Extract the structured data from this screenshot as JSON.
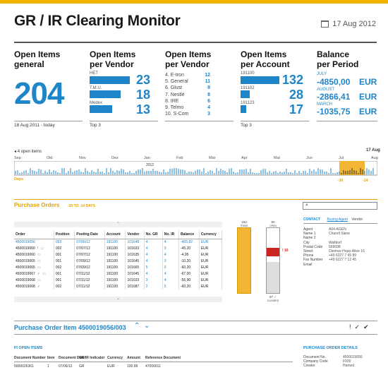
{
  "app": {
    "title": "GR / IR Clearing Monitor",
    "date": "17 Aug 2012"
  },
  "kpis": {
    "general": {
      "title": "Open Items",
      "sub": "general",
      "value": "204",
      "footer": "18 Aug 2011 - today"
    },
    "per_vendor_top": {
      "title": "Open Items",
      "sub": "per Vendor",
      "footer": "Top 3",
      "items": [
        {
          "label": "HET",
          "value": "23",
          "fill": 1.0
        },
        {
          "label": "T.M.U.",
          "value": "18",
          "fill": 0.78
        },
        {
          "label": "Medex",
          "value": "13",
          "fill": 0.57
        }
      ]
    },
    "per_vendor_rank": {
      "title": "Open Items",
      "sub": "per Vendor",
      "items": [
        {
          "label": "4. E-tron",
          "value": "12"
        },
        {
          "label": "5. General",
          "value": "11"
        },
        {
          "label": "6. Glust",
          "value": "9"
        },
        {
          "label": "7. Nestlé",
          "value": "8"
        },
        {
          "label": "8. IRE",
          "value": "6"
        },
        {
          "label": "9. Telmo",
          "value": "4"
        },
        {
          "label": "10. S-Com",
          "value": "3"
        }
      ]
    },
    "per_account": {
      "title": "Open Items",
      "sub": "per Account",
      "footer": "Top 3",
      "items": [
        {
          "label": "191100",
          "value": "132",
          "fill": 1.0
        },
        {
          "label": "191102",
          "value": "28",
          "fill": 0.21
        },
        {
          "label": "191123",
          "value": "17",
          "fill": 0.13
        }
      ]
    },
    "balance": {
      "title": "Balance",
      "sub": "per Period",
      "items": [
        {
          "month": "JULY",
          "value": "-4850,00",
          "cur": "EUR"
        },
        {
          "month": "AUGUST",
          "value": "-2866,41",
          "cur": "EUR"
        },
        {
          "month": "MARCH",
          "value": "-1035,75",
          "cur": "EUR"
        }
      ]
    }
  },
  "timeline": {
    "left_label": "4 open items",
    "right_label": "17 Aug",
    "months": [
      "Sep",
      "Okt",
      "Nov",
      "Dez",
      "Jan",
      "Feb",
      "Mär",
      "Apr",
      "Mai",
      "Jun",
      "Jul",
      "Aug"
    ],
    "year_label": "2012",
    "days_label": "Days",
    "marker_a": "-30",
    "marker_b": "-14"
  },
  "purchase_orders": {
    "title": "Purchase Orders",
    "subtitle": "-30 TO -14 DAYS",
    "columns": [
      "Order",
      "Position",
      "Posting Date",
      "Account",
      "Vendor",
      "No. GR",
      "No. IR",
      "Balance",
      "Currency"
    ],
    "rows": [
      [
        "4500019056",
        "003",
        "07/06/12",
        "191100",
        "101648",
        "4",
        "4",
        "-465,82",
        "EUR"
      ],
      [
        "4500019060",
        "002",
        "07/07/12",
        "191100",
        "101633",
        "4",
        "9",
        "-45,20",
        "EUR"
      ],
      [
        "4500019060",
        "001",
        "07/07/12",
        "191100",
        "101635",
        "4",
        "4",
        "-4,95",
        "EUR"
      ],
      [
        "4500019065",
        "001",
        "07/09/12",
        "191100",
        "101645",
        "4",
        "3",
        "-10,20",
        "EUR"
      ],
      [
        "4500019065",
        "002",
        "07/09/12",
        "191100",
        "101665",
        "5",
        "0",
        "-60,20",
        "EUR"
      ],
      [
        "4500019067",
        "001",
        "07/11/12",
        "191100",
        "101645",
        "4",
        "4",
        "-67,00",
        "EUR"
      ],
      [
        "4500019068",
        "001",
        "07/11/12",
        "191100",
        "101633",
        "3",
        "4",
        "-56,90",
        "EUR"
      ],
      [
        "4500019068",
        "002",
        "07/11/12",
        "191100",
        "101687",
        "2",
        "5",
        "-60,20",
        "EUR"
      ]
    ]
  },
  "gauges": {
    "items_label": "183",
    "items_caption": "ITEMS",
    "open_label": "50",
    "open_caption": "OPEN",
    "cleared_label": "97",
    "cleared_caption": "CLEARED",
    "warn_value": "16"
  },
  "contact": {
    "tabs": [
      "CONTACT",
      "Buying Agent",
      "Vendor"
    ],
    "fields": [
      {
        "k": "Agent",
        "v": "A04-AGEN"
      },
      {
        "k": "Name 1",
        "v": "Charell Slane"
      },
      {
        "k": "Name 2",
        "v": ""
      },
      {
        "k": "City",
        "v": "Walldorf"
      },
      {
        "k": "Postal Code",
        "v": "569098"
      },
      {
        "k": "Street",
        "v": "Dietmar-Hopp-Allee 16"
      },
      {
        "k": "Phone",
        "v": "+49 6227 7 45 89"
      },
      {
        "k": "Fax Number",
        "v": "+49 6227 7 12 45"
      },
      {
        "k": "Email",
        "v": ""
      }
    ]
  },
  "po_item": {
    "title": "Purchase Order Item 4500019056/003",
    "fi_title": "FI OPEN ITEMS",
    "fi_columns": [
      "Document Number",
      "Item",
      "Document Date",
      "GR/IR Indicator",
      "Currency",
      "Amount",
      "Reference Document"
    ],
    "fi_row": [
      "5000026361",
      "1",
      "07/06/12",
      "GR",
      "EUR",
      "100.99",
      "47000011"
    ],
    "details_title": "PURCHASE ORDER DETAILS",
    "details": [
      {
        "k": "Document No.",
        "v": "4500019056"
      },
      {
        "k": "Company Code",
        "v": "F000"
      },
      {
        "k": "Creator",
        "v": "Hamed"
      }
    ]
  },
  "colors": {
    "accent": "#1e85c8",
    "highlight": "#f2b634",
    "warn": "#cc2222"
  }
}
